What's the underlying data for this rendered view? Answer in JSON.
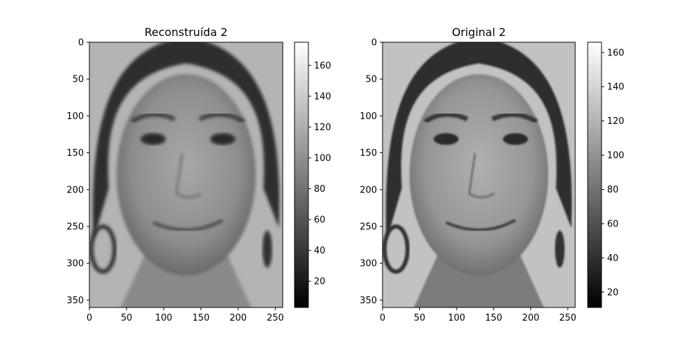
{
  "chart_data": [
    {
      "type": "heatmap",
      "subtype": "grayscale-image",
      "title": "Reconstruída 2",
      "content": "reconstructed grayscale face",
      "xlim": [
        0,
        260
      ],
      "ylim": [
        360,
        0
      ],
      "xticks": [
        0,
        50,
        100,
        150,
        200,
        250
      ],
      "yticks": [
        0,
        50,
        100,
        150,
        200,
        250,
        300,
        350
      ],
      "colormap": "gray",
      "colorbar": {
        "range": [
          3,
          175
        ],
        "ticks": [
          20,
          40,
          60,
          80,
          100,
          120,
          140,
          160
        ]
      }
    },
    {
      "type": "heatmap",
      "subtype": "grayscale-image",
      "title": "Original 2",
      "content": "original grayscale face photograph",
      "xlim": [
        0,
        260
      ],
      "ylim": [
        360,
        0
      ],
      "xticks": [
        0,
        50,
        100,
        150,
        200,
        250
      ],
      "yticks": [
        0,
        50,
        100,
        150,
        200,
        250,
        300,
        350
      ],
      "colormap": "gray",
      "colorbar": {
        "range": [
          11,
          166
        ],
        "ticks": [
          20,
          40,
          60,
          80,
          100,
          120,
          140,
          160
        ]
      }
    }
  ]
}
